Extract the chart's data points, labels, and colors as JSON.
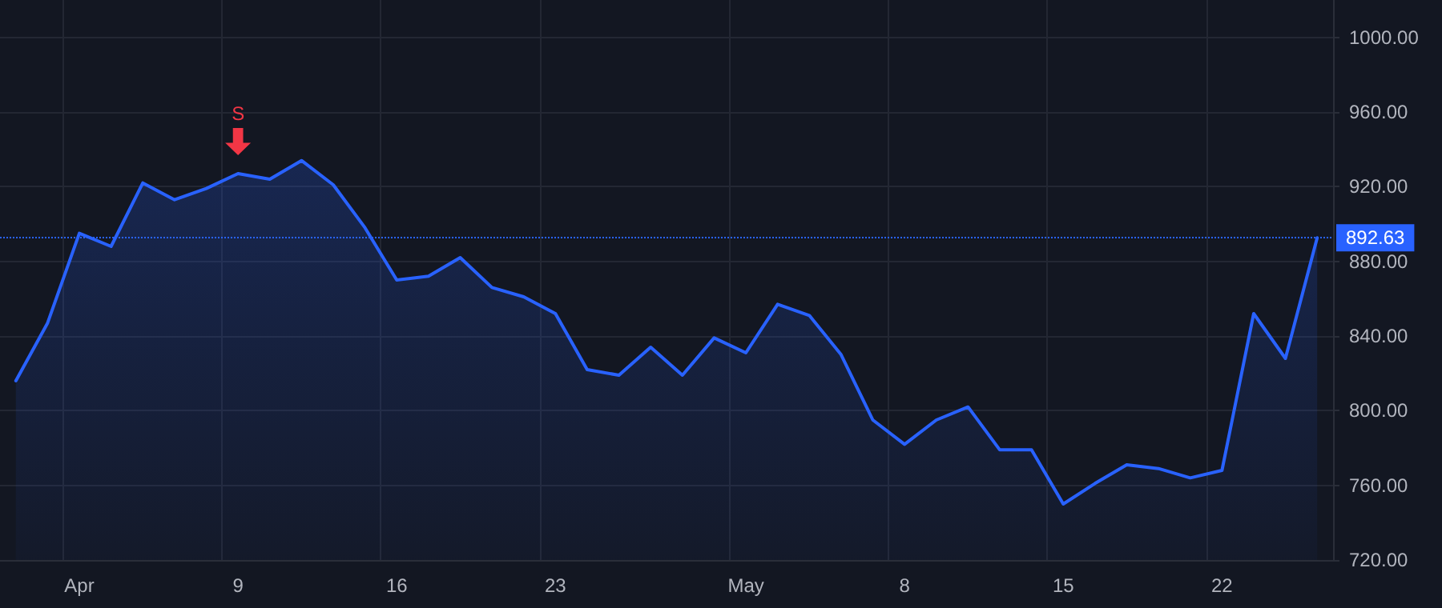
{
  "chart_data": {
    "type": "area",
    "categories": [
      null,
      null,
      "Apr",
      null,
      null,
      null,
      null,
      "9",
      null,
      null,
      null,
      null,
      "16",
      null,
      null,
      null,
      null,
      "23",
      null,
      null,
      null,
      null,
      null,
      "May",
      null,
      null,
      null,
      null,
      "8",
      null,
      null,
      null,
      null,
      "15",
      null,
      null,
      null,
      null,
      "22",
      null,
      null,
      null
    ],
    "series": [
      {
        "color": "#2962ff",
        "values": [
          816,
          847,
          895,
          888,
          922,
          913,
          919,
          927,
          924,
          934,
          921,
          898,
          870,
          872,
          882,
          866,
          861,
          852,
          822,
          819,
          834,
          819,
          839,
          831,
          857,
          851,
          830,
          795,
          782,
          795,
          802,
          779,
          779,
          750,
          761,
          771,
          769,
          764,
          768,
          852,
          828,
          892.63
        ]
      }
    ],
    "ylim": [
      720,
      1020
    ],
    "yticks": [
      {
        "value": 720,
        "label": "720.00"
      },
      {
        "value": 760,
        "label": "760.00"
      },
      {
        "value": 800,
        "label": "800.00"
      },
      {
        "value": 840,
        "label": "840.00"
      },
      {
        "value": 880,
        "label": "880.00"
      },
      {
        "value": 920,
        "label": "920.00"
      },
      {
        "value": 960,
        "label": "960.00"
      },
      {
        "value": 1000,
        "label": "1000.00"
      }
    ],
    "ref_lines": [
      {
        "axis": "y",
        "value": 892.63,
        "label": "892.63",
        "color": "#2962ff",
        "line_style": "dotted"
      }
    ],
    "annotations": [
      {
        "text": "S",
        "x": "9",
        "y": 927
      }
    ],
    "grid": true,
    "marker": "none",
    "line_style": "solid"
  }
}
